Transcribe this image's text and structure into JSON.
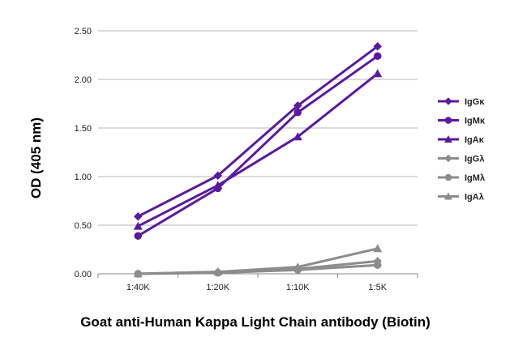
{
  "chart_data": {
    "type": "line",
    "xlabel": "Goat anti-Human Kappa Light Chain antibody (Biotin)",
    "ylabel": "OD (405 nm)",
    "categories": [
      "1:40K",
      "1:20K",
      "1:10K",
      "1:5K"
    ],
    "yticks": [
      "0.00",
      "0.50",
      "1.00",
      "1.50",
      "2.00",
      "2.50"
    ],
    "ylim": [
      0,
      2.5
    ],
    "grid": true,
    "legend_position": "right",
    "series": [
      {
        "name": "IgGκ",
        "marker": "diamond",
        "color": "#5b1a9e",
        "values": [
          0.59,
          1.01,
          1.73,
          2.34
        ]
      },
      {
        "name": "IgMκ",
        "marker": "circle",
        "color": "#5b1a9e",
        "values": [
          0.39,
          0.88,
          1.66,
          2.24
        ]
      },
      {
        "name": "IgAκ",
        "marker": "triangle",
        "color": "#5b1a9e",
        "values": [
          0.49,
          0.91,
          1.41,
          2.06
        ]
      },
      {
        "name": "IgGλ",
        "marker": "diamond",
        "color": "#8c8c8c",
        "values": [
          0.0,
          0.02,
          0.05,
          0.13
        ]
      },
      {
        "name": "IgMλ",
        "marker": "circle",
        "color": "#8c8c8c",
        "values": [
          0.0,
          0.01,
          0.04,
          0.09
        ]
      },
      {
        "name": "IgAλ",
        "marker": "triangle",
        "color": "#8c8c8c",
        "values": [
          0.0,
          0.02,
          0.07,
          0.26
        ]
      }
    ]
  }
}
